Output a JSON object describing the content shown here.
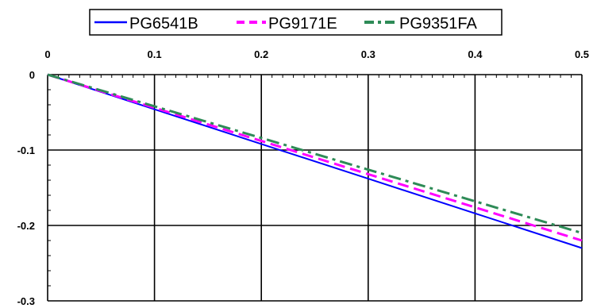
{
  "chart_data": {
    "type": "line",
    "title": "",
    "xlabel": "",
    "ylabel": "",
    "xlim": [
      0,
      0.5
    ],
    "ylim": [
      -0.3,
      0
    ],
    "x_ticks": [
      "0",
      "0.1",
      "0.2",
      "0.3",
      "0.4",
      "0.5"
    ],
    "y_ticks": [
      "0",
      "-0.1",
      "-0.2",
      "-0.3"
    ],
    "x_axis_position": "top",
    "grid": true,
    "legend_position": "top-center",
    "series": [
      {
        "name": "PG6541B",
        "color": "#0000ff",
        "line_style": "solid",
        "x": [
          0,
          0.1,
          0.2,
          0.3,
          0.4,
          0.5
        ],
        "y": [
          0,
          -0.046,
          -0.092,
          -0.138,
          -0.184,
          -0.23
        ]
      },
      {
        "name": "PG9171E",
        "color": "#ff00ff",
        "line_style": "dash",
        "x": [
          0,
          0.1,
          0.2,
          0.3,
          0.4,
          0.5
        ],
        "y": [
          0,
          -0.044,
          -0.088,
          -0.132,
          -0.176,
          -0.22
        ]
      },
      {
        "name": "PG9351FA",
        "color": "#2e8b57",
        "line_style": "dash-dot",
        "x": [
          0,
          0.1,
          0.2,
          0.3,
          0.4,
          0.5
        ],
        "y": [
          0,
          -0.042,
          -0.084,
          -0.126,
          -0.168,
          -0.21
        ]
      }
    ]
  }
}
